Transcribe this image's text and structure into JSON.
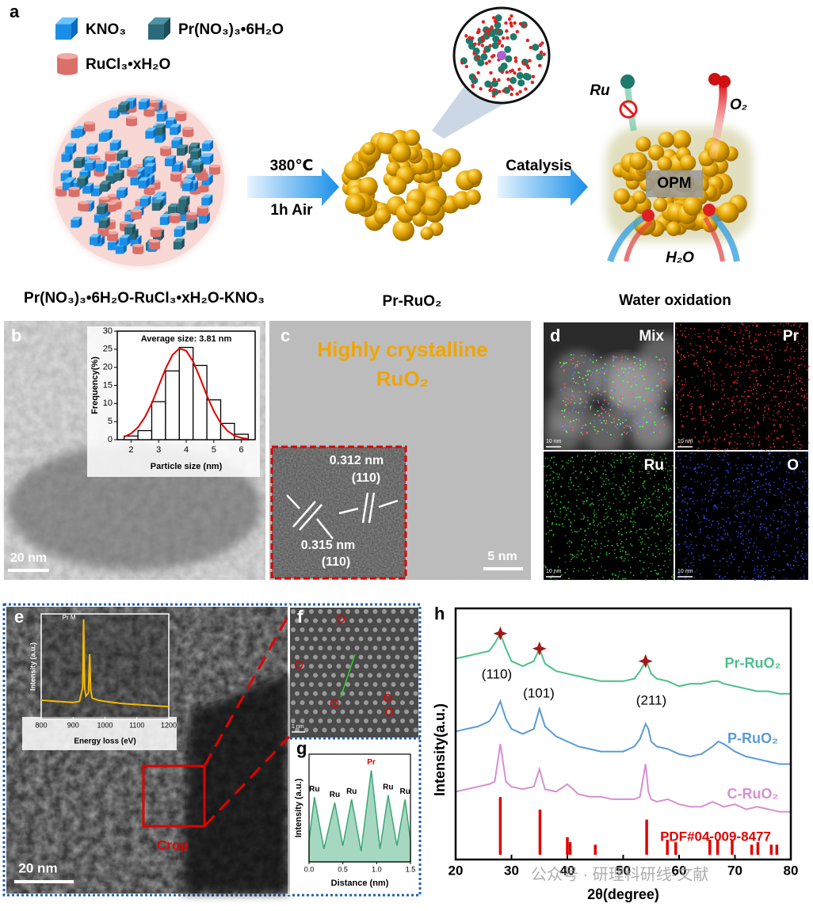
{
  "panel_a": {
    "label": "a",
    "legend": [
      "KNO₃",
      "Pr(NO₃)₃•6H₂O",
      "RuCl₃•xH₂O"
    ],
    "step1": [
      "380℃",
      "1h Air"
    ],
    "step2": "Catalysis",
    "precursor": "Pr(NO₃)₃•6H₂O-RuCl₃•xH₂O-KNO₃",
    "product": "Pr-RuO₂",
    "application": "Water oxidation",
    "annotations": {
      "ru": "Ru",
      "o2": "O₂",
      "h2o": "H₂O",
      "opm": "OPM"
    }
  },
  "panel_b": {
    "label": "b",
    "scale_bar": "20 nm",
    "chart_data": {
      "type": "histogram",
      "title": "Average size: 3.81 nm",
      "xlabel": "Particle size (nm)",
      "ylabel": "Frequency(%)",
      "bins": [
        1.75,
        2.25,
        2.75,
        3.25,
        3.75,
        4.25,
        4.75,
        5.25,
        5.75,
        6.25
      ],
      "counts": [
        1,
        2.5,
        10.5,
        19,
        25.5,
        20.5,
        11,
        4.5,
        1.5
      ],
      "color": "#ffffff",
      "edge_color": "#000000",
      "fit": {
        "color": "#e00000",
        "x": [
          1.75,
          2,
          2.25,
          2.5,
          2.75,
          3,
          3.25,
          3.5,
          3.75,
          4,
          4.25,
          4.5,
          4.75,
          5,
          5.25,
          5.5,
          5.75,
          6,
          6.25
        ],
        "y": [
          0.8,
          1.7,
          3.4,
          6.2,
          10,
          14.8,
          19.6,
          23.4,
          25.2,
          24.6,
          21.6,
          17.1,
          12.2,
          7.9,
          4.6,
          2.4,
          1.1,
          0.5,
          0.2
        ]
      },
      "xlim": [
        1.5,
        6.5
      ],
      "ylim": [
        0,
        30
      ],
      "xticks": [
        2,
        3,
        4,
        5,
        6
      ],
      "yticks": [
        0,
        5,
        10,
        15,
        20,
        25,
        30
      ]
    }
  },
  "panel_c": {
    "label": "c",
    "title": [
      "Highly crystalline",
      "RuO₂"
    ],
    "inset": [
      "0.312 nm",
      "(110)",
      "0.315 nm",
      "(110)"
    ],
    "scale_bar": "5 nm"
  },
  "panel_d": {
    "label": "d",
    "maps": [
      {
        "name": "Mix",
        "scale_bar": "10 nm"
      },
      {
        "name": "Pr",
        "scale_bar": "10 nm",
        "color": "#ff3030"
      },
      {
        "name": "Ru",
        "scale_bar": "10 nm",
        "color": "#30d030"
      },
      {
        "name": "O",
        "scale_bar": "10 nm",
        "color": "#3050ff"
      }
    ]
  },
  "panel_e": {
    "label": "e",
    "scale_bar": "20 nm",
    "crop": "Crop",
    "chart_data": {
      "type": "line",
      "annotation": "Pr M",
      "xlabel": "Energy loss (eV)",
      "ylabel": "Intensity (a.u.)",
      "color": "#f5b800",
      "x": [
        800,
        850,
        900,
        920,
        930,
        933,
        936,
        940,
        948,
        952,
        955,
        960,
        980,
        1000,
        1050,
        1100,
        1150,
        1200
      ],
      "values": [
        0.18,
        0.17,
        0.16,
        0.17,
        0.3,
        0.95,
        0.3,
        0.22,
        0.25,
        0.62,
        0.28,
        0.2,
        0.18,
        0.17,
        0.15,
        0.14,
        0.13,
        0.12
      ],
      "xlim": [
        800,
        1200
      ],
      "ylim": [
        0,
        1
      ],
      "xticks": [
        800,
        900,
        1000,
        1100,
        1200
      ]
    }
  },
  "panel_f": {
    "label": "f",
    "scale_bar": "1 nm"
  },
  "panel_g": {
    "label": "g",
    "chart_data": {
      "type": "area",
      "xlabel": "Distance (nm)",
      "ylabel": "Intensity (a.u.)",
      "color": "#3aa676",
      "x": [
        0,
        0.08,
        0.22,
        0.38,
        0.5,
        0.63,
        0.77,
        0.92,
        1.05,
        1.17,
        1.3,
        1.42,
        1.5
      ],
      "values": [
        0.2,
        0.6,
        0.12,
        0.55,
        0.15,
        0.58,
        0.1,
        0.85,
        0.12,
        0.62,
        0.15,
        0.58,
        0.2
      ],
      "peak_labels": [
        "Ru",
        "Ru",
        "Ru",
        "Pr",
        "Ru",
        "Ru"
      ],
      "xlim": [
        0,
        1.5
      ],
      "ylim": [
        0,
        1
      ],
      "xticks": [
        {
          "value": 0,
          "label": "0.0"
        },
        {
          "value": 0.5,
          "label": "0.5"
        },
        {
          "value": 1,
          "label": "1.0"
        },
        {
          "value": 1.5,
          "label": "1.5"
        }
      ]
    }
  },
  "panel_h": {
    "label": "h",
    "chart_data": {
      "type": "line",
      "xlabel": "2θ(degree)",
      "ylabel": "Intensity(a.u.)",
      "x": [
        20,
        22,
        24,
        26,
        27,
        28,
        29,
        30,
        32,
        34,
        35,
        36,
        38,
        40,
        42,
        44,
        46,
        48,
        50,
        52,
        53,
        54,
        54.5,
        55,
        56,
        58,
        60,
        62,
        64,
        66,
        67,
        68,
        70,
        72,
        74,
        76,
        78,
        80
      ],
      "series": [
        {
          "name": "Pr-RuO₂",
          "color": "#4cbf8c",
          "values": [
            80,
            81,
            82,
            83,
            86,
            90,
            84,
            79,
            77,
            79,
            84,
            78,
            75,
            74,
            73,
            72,
            71,
            71,
            71,
            72,
            75,
            79,
            77,
            74,
            72,
            71,
            69,
            70,
            70,
            71,
            71,
            70,
            69,
            68,
            67,
            67,
            66,
            66
          ]
        },
        {
          "name": "P-RuO₂",
          "color": "#5b9bd5",
          "values": [
            51,
            52,
            53,
            55,
            58,
            63,
            56,
            52,
            50,
            52,
            60,
            53,
            49,
            47,
            45,
            44,
            43,
            43,
            43,
            45,
            48,
            54,
            52,
            47,
            45,
            44,
            42,
            41,
            42,
            45,
            47,
            46,
            43,
            41,
            40,
            39,
            38,
            38
          ]
        },
        {
          "name": "C-RuO₂",
          "color": "#d88fd2",
          "values": [
            27,
            28,
            29,
            30,
            31,
            46,
            31,
            29,
            28,
            29,
            36,
            28,
            27,
            30,
            26,
            25,
            25,
            24,
            24,
            24,
            25,
            38,
            27,
            24,
            23,
            24,
            22,
            21,
            21,
            23,
            22,
            21,
            22,
            20,
            21,
            20,
            19,
            19
          ]
        }
      ],
      "reference": {
        "name": "PDF#04-009-8477",
        "color": "#e00000",
        "x": [
          28,
          35.1,
          40,
          40.5,
          45,
          54.2,
          57.9,
          59.4,
          65.5,
          66.9,
          69.5,
          73,
          74.1,
          76.5,
          77.5
        ],
        "values": [
          23,
          18,
          7,
          5,
          4,
          14,
          6,
          5,
          6,
          6,
          6,
          4,
          5,
          4,
          4
        ]
      },
      "annotations": [
        "(110)",
        "(101)",
        "(211)"
      ],
      "xlim": [
        20,
        80
      ],
      "ylim": [
        0,
        100
      ],
      "xticks": [
        20,
        30,
        40,
        50,
        60,
        70,
        80
      ]
    }
  },
  "watermark": "公众号 · 研理科研线-文献"
}
